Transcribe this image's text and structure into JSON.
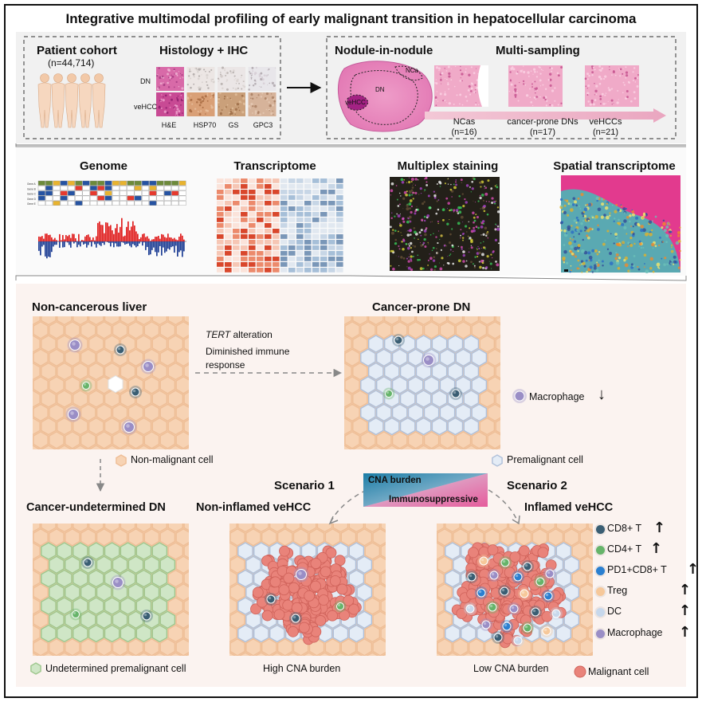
{
  "title": "Integrative multimodal profiling of early malignant transition in hepatocellular carcinoma",
  "panel_top": {
    "cohort_title": "Patient cohort",
    "cohort_n": "(n=44,714)",
    "histo_title": "Histology + IHC",
    "row_labels": [
      "DN",
      "veHCC"
    ],
    "stain_labels": [
      "H&E",
      "HSP70",
      "GS",
      "GPC3"
    ],
    "nodule_title": "Nodule-in-nodule",
    "nodule_labels": {
      "nca": "NCa",
      "dn": "DN",
      "vehcc": "veHCC"
    },
    "multi_title": "Multi-sampling",
    "samples": [
      {
        "label": "NCas",
        "n": "(n=16)"
      },
      {
        "label": "cancer-prone DNs",
        "n": "(n=17)"
      },
      {
        "label": "veHCCs",
        "n": "(n=21)"
      }
    ]
  },
  "panel_mid": {
    "modalities": [
      "Genome",
      "Transcriptome",
      "Multiplex staining",
      "Spatial transcriptome"
    ],
    "gene_rows": [
      "Gene A",
      "Gene B",
      "Gene C",
      "Gene D",
      "Gene E"
    ]
  },
  "panel_bottom": {
    "states": {
      "nc_liver": "Non-cancerous liver",
      "cancer_prone": "Cancer-prone DN",
      "undetermined": "Cancer-undetermined DN",
      "non_inflamed": "Non-inflamed veHCC",
      "inflamed": "Inflamed veHCC"
    },
    "arrow_text": {
      "italic": "TERT",
      "rest": " alteration",
      "line2": "Diminished immune",
      "line3": "response"
    },
    "scenario1": "Scenario 1",
    "scenario2": "Scenario 2",
    "gradient": {
      "top": "CNA burden",
      "bottom": "Immunosuppressive"
    },
    "legends": {
      "non_malignant": "Non-malignant cell",
      "premalignant": "Premalignant cell",
      "macrophage_down": "Macrophage",
      "undetermined_cell": "Undetermined premalignant cell",
      "malignant": "Malignant cell"
    },
    "captions": {
      "high": "High CNA burden",
      "low": "Low CNA burden"
    },
    "immune_legend": [
      "CD8+ T",
      "CD4+ T",
      "PD1+CD8+ T",
      "Treg",
      "DC",
      "Macrophage"
    ],
    "arrow_down": "↓",
    "arrow_up": "↑"
  },
  "colors": {
    "hepatocyte": "#f7d3b4",
    "hepatocyte_border": "#eebd95",
    "premalignant": "#e4ecf6",
    "premalignant_border": "#aebfd9",
    "undetermined": "#cfe6c6",
    "undetermined_border": "#9dc68c",
    "malignant": "#e9837a",
    "malignant_border": "#cf625a",
    "cd8": "#3a5e73",
    "cd4": "#66b46a",
    "pd1cd8": "#2a7fd0",
    "treg": "#f6c89a",
    "dc": "#c7d8ec",
    "macrophage": "#9a8ec6",
    "he_pink": "#d94c9a",
    "gradient_blue": "#1f7ea6",
    "gradient_pink": "#e25b9b"
  }
}
